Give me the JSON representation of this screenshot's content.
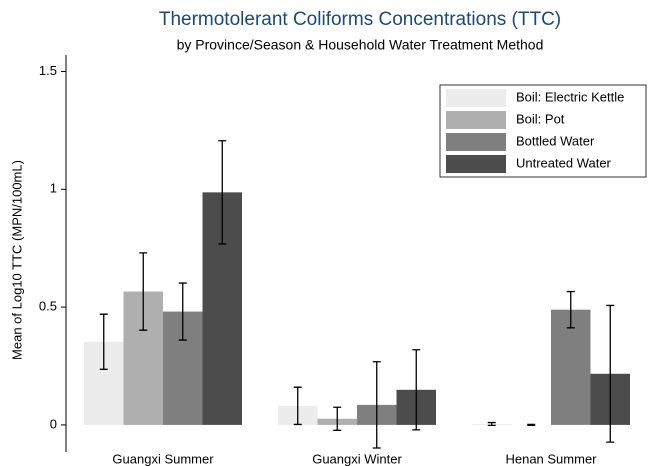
{
  "chart_data": {
    "type": "bar",
    "title": "Thermotolerant Coliforms Concentrations (TTC)",
    "subtitle": "by Province/Season & Household Water Treatment Method",
    "y_label": "Mean of Log10 TTC (MPN/100mL)",
    "categories": [
      "Guangxi Summer",
      "Guangxi Winter",
      "Henan Summer"
    ],
    "series": [
      {
        "name": "Boil: Electric Kettle",
        "color": "#ececec",
        "values": [
          0.353,
          0.081,
          0.004
        ],
        "errors": [
          0.117,
          0.079,
          0.006
        ]
      },
      {
        "name": "Boil: Pot",
        "color": "#afafaf",
        "values": [
          0.566,
          0.026,
          0.0
        ],
        "errors": [
          0.164,
          0.049,
          0.002
        ]
      },
      {
        "name": "Bottled Water",
        "color": "#7f7f7f",
        "values": [
          0.481,
          0.085,
          0.489
        ],
        "errors": [
          0.121,
          0.183,
          0.077
        ]
      },
      {
        "name": "Untreated Water",
        "color": "#4c4c4c",
        "values": [
          0.987,
          0.149,
          0.217
        ],
        "errors": [
          0.219,
          0.17,
          0.29
        ]
      }
    ],
    "ylim": [
      -0.115,
      1.57
    ],
    "yticks": [
      0,
      0.5,
      1,
      1.5
    ],
    "legend": "top-right"
  }
}
